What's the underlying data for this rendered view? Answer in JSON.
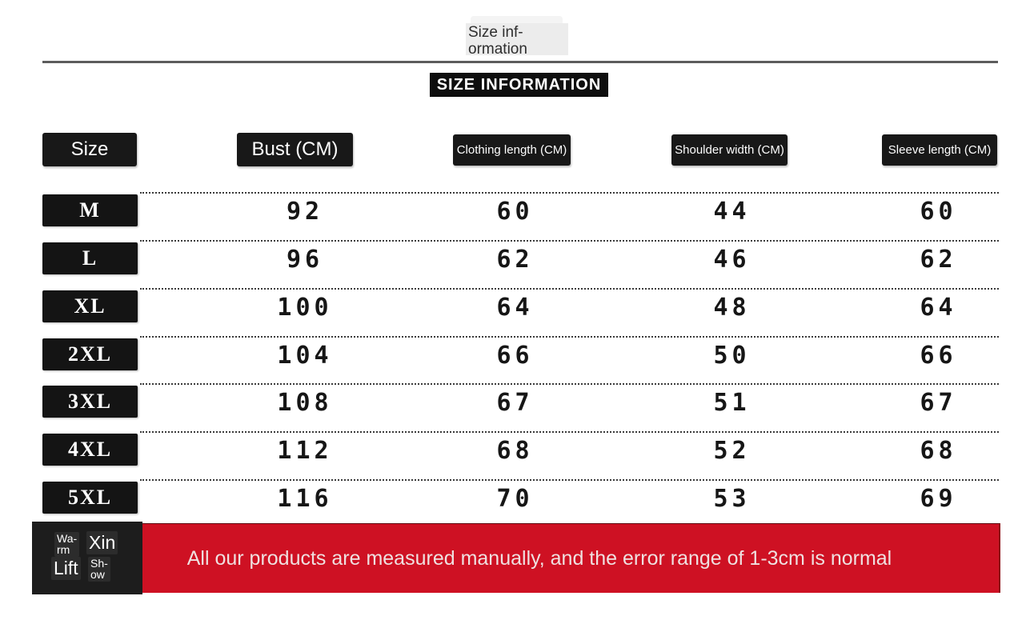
{
  "header": {
    "overlay_label": "Size inf-\normation",
    "title_badge": "SIZE INFORMATION"
  },
  "table": {
    "headers": {
      "size": "Size",
      "bust": "Bust (CM)",
      "clothing_length": "Clothing length (CM)",
      "shoulder_width": "Shoulder width (CM)",
      "sleeve_length": "Sleeve length (CM)"
    },
    "rows": [
      {
        "size": "M",
        "values": [
          "92",
          "60",
          "44",
          "60"
        ]
      },
      {
        "size": "L",
        "values": [
          "96",
          "62",
          "46",
          "62"
        ]
      },
      {
        "size": "XL",
        "values": [
          "100",
          "64",
          "48",
          "64"
        ]
      },
      {
        "size": "2XL",
        "values": [
          "104",
          "66",
          "50",
          "66"
        ]
      },
      {
        "size": "3XL",
        "values": [
          "108",
          "67",
          "51",
          "67"
        ]
      },
      {
        "size": "4XL",
        "values": [
          "112",
          "68",
          "52",
          "68"
        ]
      },
      {
        "size": "5XL",
        "values": [
          "116",
          "70",
          "53",
          "69"
        ]
      }
    ]
  },
  "footer": {
    "stamp": {
      "warm": "Wa-\nrm",
      "xin": "Xin",
      "lift": "Lift",
      "show": "Sh-\now"
    },
    "notice": "All our products are measured manually, and the error range of 1-3cm is normal"
  },
  "colors": {
    "accent_red": "#ce1123",
    "box_black": "#161616",
    "overlay_gray": "#ececec"
  },
  "chart_data": {
    "type": "table",
    "title": "SIZE INFORMATION",
    "columns": [
      "Size",
      "Bust (CM)",
      "Clothing length (CM)",
      "Shoulder width (CM)",
      "Sleeve length (CM)"
    ],
    "rows": [
      [
        "M",
        92,
        60,
        44,
        60
      ],
      [
        "L",
        96,
        62,
        46,
        62
      ],
      [
        "XL",
        100,
        64,
        48,
        64
      ],
      [
        "2XL",
        104,
        66,
        50,
        66
      ],
      [
        "3XL",
        108,
        67,
        51,
        67
      ],
      [
        "4XL",
        112,
        68,
        52,
        68
      ],
      [
        "5XL",
        116,
        70,
        53,
        69
      ]
    ],
    "note": "All our products are measured manually, and the error range of 1-3cm is normal",
    "layout": {
      "grid": "dotted row separators",
      "header_style": "white text on black badges"
    }
  }
}
